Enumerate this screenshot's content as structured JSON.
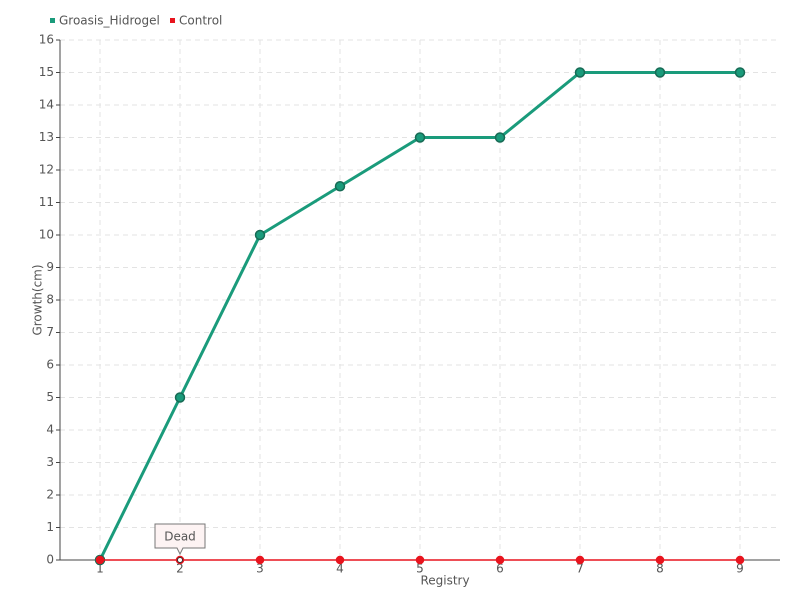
{
  "chart_data": {
    "type": "line",
    "x": [
      1,
      2,
      3,
      4,
      5,
      6,
      7,
      8,
      9
    ],
    "series": [
      {
        "name": "Groasis_Hidrogel",
        "color": "#1a9b7b",
        "values": [
          0,
          5,
          10,
          11.5,
          13,
          13,
          15,
          15,
          15
        ]
      },
      {
        "name": "Control",
        "color": "#e8141e",
        "values": [
          0,
          0,
          0,
          0,
          0,
          0,
          0,
          0,
          0
        ]
      }
    ],
    "xlabel": "Registry",
    "ylabel": "Growth(cm)",
    "xlim": [
      0.5,
      9.5
    ],
    "xticks": [
      1,
      2,
      3,
      4,
      5,
      6,
      7,
      8,
      9
    ],
    "ylim": [
      0,
      16
    ],
    "yticks": [
      0,
      1,
      2,
      3,
      4,
      5,
      6,
      7,
      8,
      9,
      10,
      11,
      12,
      13,
      14,
      15,
      16
    ],
    "grid": true,
    "legend": "top-left",
    "annotations": [
      {
        "text": "Dead",
        "x": 2,
        "y": 0
      }
    ]
  }
}
